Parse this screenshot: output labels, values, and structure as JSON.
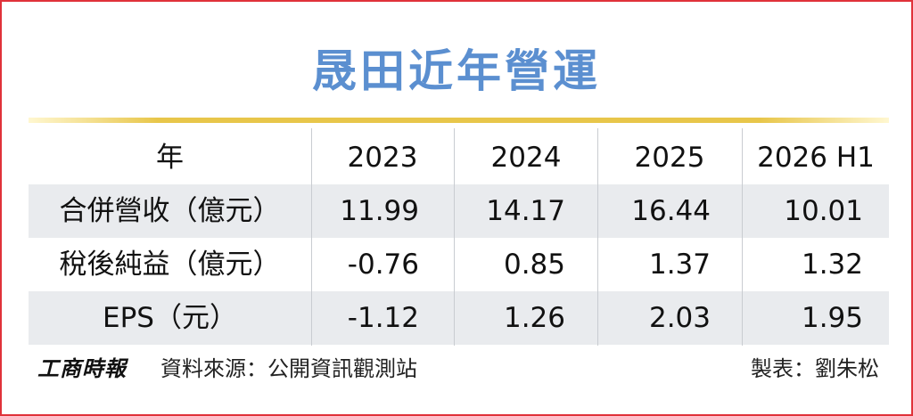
{
  "title": "晟田近年營運",
  "table": {
    "header": [
      "年",
      "2023",
      "2024",
      "2025",
      "2026 H1"
    ],
    "rows": [
      [
        "合併營收（億元）",
        11.99,
        14.17,
        16.44,
        10.01
      ],
      [
        "稅後純益（億元）",
        -0.76,
        0.85,
        1.37,
        1.32
      ],
      [
        "EPS（元）",
        -1.12,
        1.26,
        2.03,
        1.95
      ]
    ]
  },
  "footer": {
    "logo": "工商時報",
    "source": "資料來源：公開資訊觀測站",
    "credit": "製表：劉朱松"
  }
}
